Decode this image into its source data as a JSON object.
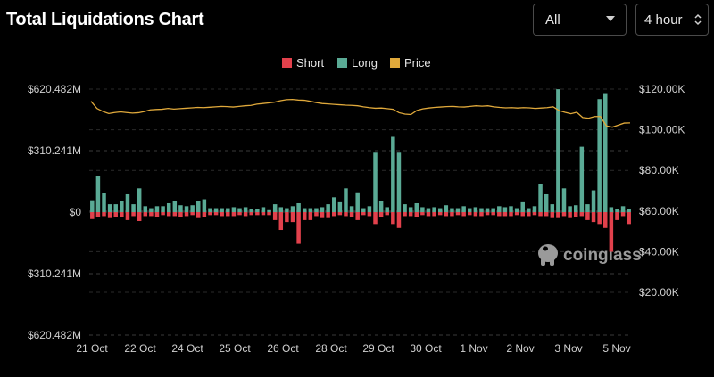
{
  "header": {
    "title": "Total Liquidations Chart"
  },
  "controls": {
    "range_select": {
      "value": "All"
    },
    "interval_select": {
      "value": "4 hour"
    }
  },
  "watermark": {
    "text": "coinglass"
  },
  "colors": {
    "short": "#e2414c",
    "long": "#5aaa95",
    "price": "#e0a93b",
    "background": "#000000"
  },
  "chart_data": {
    "type": "bar",
    "legend": [
      "Short",
      "Long",
      "Price"
    ],
    "legend_position": "top-center",
    "grid": true,
    "x_tick_labels": [
      "21 Oct",
      "22 Oct",
      "24 Oct",
      "25 Oct",
      "26 Oct",
      "28 Oct",
      "29 Oct",
      "30 Oct",
      "1 Nov",
      "2 Nov",
      "3 Nov",
      "5 Nov"
    ],
    "left_axis": {
      "tick_labels": [
        "$620.482M",
        "$310.241M",
        "$0",
        "$310.241M",
        "$620.482M"
      ],
      "ylim": [
        -620.482,
        620.482
      ],
      "unit": "M USD"
    },
    "right_axis": {
      "tick_labels": [
        "$120.00K",
        "$100.00K",
        "$80.00K",
        "$60.00K",
        "$40.00K",
        "$20.00K"
      ],
      "ylim": [
        0,
        120000
      ],
      "note": "axis labels show $120K at top down to $20K"
    },
    "series": [
      {
        "name": "Long",
        "values": [
          60,
          180,
          95,
          40,
          40,
          55,
          90,
          40,
          120,
          30,
          20,
          30,
          30,
          45,
          55,
          35,
          30,
          35,
          55,
          65,
          20,
          20,
          20,
          20,
          25,
          20,
          25,
          15,
          15,
          25,
          10,
          40,
          25,
          20,
          30,
          45,
          20,
          20,
          20,
          25,
          40,
          75,
          50,
          120,
          30,
          100,
          20,
          30,
          300,
          55,
          25,
          380,
          300,
          40,
          25,
          45,
          25,
          20,
          25,
          20,
          35,
          20,
          20,
          30,
          20,
          25,
          20,
          20,
          20,
          30,
          25,
          30,
          20,
          50,
          20,
          30,
          140,
          90,
          40,
          620,
          120,
          30,
          35,
          330,
          40,
          110,
          570,
          600,
          25,
          15,
          30,
          15
        ]
      },
      {
        "name": "Short",
        "values": [
          35,
          25,
          20,
          30,
          25,
          25,
          40,
          20,
          45,
          20,
          20,
          25,
          15,
          20,
          20,
          25,
          20,
          15,
          30,
          25,
          15,
          15,
          20,
          20,
          20,
          15,
          20,
          15,
          15,
          15,
          15,
          40,
          90,
          50,
          50,
          160,
          40,
          40,
          20,
          30,
          30,
          20,
          15,
          20,
          25,
          40,
          15,
          20,
          60,
          25,
          15,
          60,
          80,
          20,
          20,
          25,
          15,
          20,
          20,
          15,
          20,
          20,
          15,
          20,
          15,
          20,
          20,
          15,
          15,
          20,
          20,
          20,
          15,
          20,
          20,
          15,
          20,
          20,
          30,
          30,
          20,
          30,
          25,
          20,
          40,
          50,
          60,
          80,
          200,
          40,
          20,
          60
        ]
      },
      {
        "name": "Price",
        "values": [
          114000,
          110500,
          109000,
          108000,
          108500,
          108800,
          108500,
          108200,
          108400,
          109000,
          109800,
          110000,
          110100,
          110500,
          110200,
          110400,
          110600,
          110800,
          111000,
          110900,
          111100,
          111300,
          111500,
          111400,
          111200,
          111500,
          111800,
          112000,
          112600,
          112900,
          113200,
          113600,
          114300,
          114800,
          114900,
          114600,
          114500,
          114000,
          113400,
          112900,
          112700,
          112500,
          112300,
          112100,
          112000,
          111800,
          111300,
          110900,
          110600,
          110700,
          110400,
          110100,
          108400,
          107700,
          107500,
          109500,
          110300,
          110700,
          111000,
          111200,
          111400,
          111500,
          111300,
          111200,
          111500,
          111800,
          111600,
          111800,
          111300,
          111000,
          110800,
          110900,
          110700,
          110900,
          110800,
          110500,
          110700,
          110900,
          111300,
          109500,
          108600,
          107900,
          108600,
          106000,
          105700,
          106500,
          106500,
          101900,
          101300,
          102300,
          103300,
          103400
        ]
      }
    ]
  }
}
